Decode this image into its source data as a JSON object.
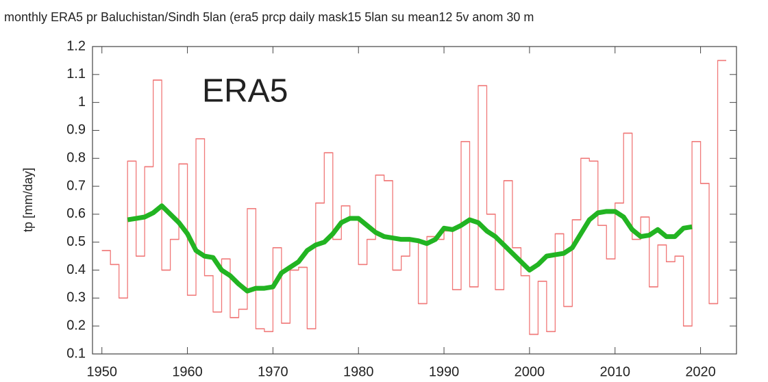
{
  "chart_data": {
    "type": "line",
    "title": "monthly ERA5 pr Baluchistan/Sindh 5lan (era5 prcp daily mask15 5lan su mean12 5v anom 30 m",
    "annotation": "ERA5",
    "ylabel": "tp [mm/day]",
    "xlim": [
      1948.9,
      2024.2
    ],
    "xticks": [
      1950,
      1960,
      1970,
      1980,
      1990,
      2000,
      2010,
      2020
    ],
    "ylim": [
      0.1,
      1.2
    ],
    "yticks": [
      0.1,
      0.2,
      0.3,
      0.4,
      0.5,
      0.6,
      0.7,
      0.8,
      0.9,
      1,
      1.1,
      1.2
    ],
    "series": [
      {
        "style": "steps",
        "color": "#f07878",
        "x": [
          1950,
          1951,
          1952,
          1953,
          1954,
          1955,
          1956,
          1957,
          1958,
          1959,
          1960,
          1961,
          1962,
          1963,
          1964,
          1965,
          1966,
          1967,
          1968,
          1969,
          1970,
          1971,
          1972,
          1973,
          1974,
          1975,
          1976,
          1977,
          1978,
          1979,
          1980,
          1981,
          1982,
          1983,
          1984,
          1985,
          1986,
          1987,
          1988,
          1989,
          1990,
          1991,
          1992,
          1993,
          1994,
          1995,
          1996,
          1997,
          1998,
          1999,
          2000,
          2001,
          2002,
          2003,
          2004,
          2005,
          2006,
          2007,
          2008,
          2009,
          2010,
          2011,
          2012,
          2013,
          2014,
          2015,
          2016,
          2017,
          2018,
          2019,
          2020,
          2021,
          2022
        ],
        "values": [
          0.47,
          0.42,
          0.3,
          0.79,
          0.45,
          0.77,
          1.08,
          0.4,
          0.51,
          0.78,
          0.31,
          0.87,
          0.38,
          0.25,
          0.44,
          0.23,
          0.26,
          0.62,
          0.19,
          0.18,
          0.48,
          0.21,
          0.4,
          0.41,
          0.19,
          0.64,
          0.82,
          0.51,
          0.63,
          0.58,
          0.42,
          0.51,
          0.74,
          0.72,
          0.4,
          0.45,
          0.51,
          0.28,
          0.52,
          0.51,
          0.54,
          0.33,
          0.86,
          0.34,
          1.06,
          0.6,
          0.33,
          0.72,
          0.48,
          0.38,
          0.17,
          0.36,
          0.18,
          0.53,
          0.27,
          0.58,
          0.8,
          0.79,
          0.56,
          0.44,
          0.64,
          0.89,
          0.51,
          0.59,
          0.34,
          0.49,
          0.43,
          0.45,
          0.2,
          0.86,
          0.71,
          0.28,
          1.15
        ]
      },
      {
        "style": "line",
        "color": "#22b422",
        "x": [
          1953,
          1954,
          1955,
          1956,
          1957,
          1958,
          1959,
          1960,
          1961,
          1962,
          1963,
          1964,
          1965,
          1966,
          1967,
          1968,
          1969,
          1970,
          1971,
          1972,
          1973,
          1974,
          1975,
          1976,
          1977,
          1978,
          1979,
          1980,
          1981,
          1982,
          1983,
          1984,
          1985,
          1986,
          1987,
          1988,
          1989,
          1990,
          1991,
          1992,
          1993,
          1994,
          1995,
          1996,
          1997,
          1998,
          1999,
          2000,
          2001,
          2002,
          2003,
          2004,
          2005,
          2006,
          2007,
          2008,
          2009,
          2010,
          2011,
          2012,
          2013,
          2014,
          2015,
          2016,
          2017,
          2018,
          2019
        ],
        "values": [
          0.58,
          0.585,
          0.59,
          0.605,
          0.63,
          0.6,
          0.57,
          0.53,
          0.47,
          0.45,
          0.445,
          0.4,
          0.38,
          0.35,
          0.325,
          0.335,
          0.335,
          0.34,
          0.39,
          0.41,
          0.43,
          0.47,
          0.49,
          0.5,
          0.53,
          0.57,
          0.585,
          0.585,
          0.56,
          0.535,
          0.52,
          0.515,
          0.51,
          0.51,
          0.505,
          0.495,
          0.51,
          0.55,
          0.545,
          0.56,
          0.58,
          0.57,
          0.54,
          0.52,
          0.49,
          0.46,
          0.43,
          0.4,
          0.42,
          0.45,
          0.455,
          0.46,
          0.48,
          0.53,
          0.58,
          0.605,
          0.61,
          0.61,
          0.59,
          0.545,
          0.52,
          0.525,
          0.545,
          0.52,
          0.52,
          0.55,
          0.555
        ]
      }
    ]
  }
}
